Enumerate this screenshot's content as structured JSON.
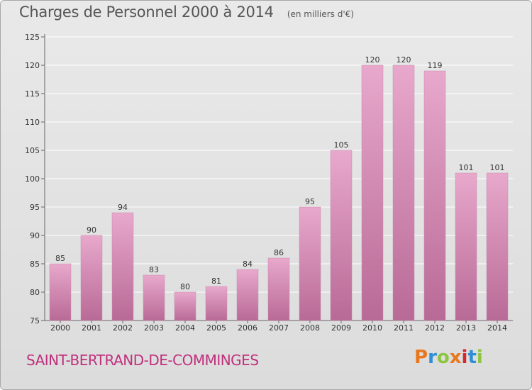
{
  "header": {
    "title": "Charges de Personnel 2000 à 2014",
    "subtitle": "(en milliers d'€)"
  },
  "footer": {
    "commune": "SAINT-BERTRAND-DE-COMMINGES",
    "logo_text": "Proxiti",
    "logo_colors": [
      "#e8771e",
      "#2f8fd6",
      "#8cc63f",
      "#e8771e",
      "#d6262f",
      "#2f8fd6",
      "#8cc63f"
    ]
  },
  "colors": {
    "bar_top": "#e8a8cc",
    "bar_bottom": "#b86a96",
    "grid": "#ffffff",
    "axis": "#666666"
  },
  "chart_data": {
    "type": "bar",
    "title": "Charges de Personnel 2000 à 2014",
    "subtitle": "(en milliers d'€)",
    "xlabel": "",
    "ylabel": "",
    "categories": [
      "2000",
      "2001",
      "2002",
      "2003",
      "2004",
      "2005",
      "2006",
      "2007",
      "2008",
      "2009",
      "2010",
      "2011",
      "2012",
      "2013",
      "2014"
    ],
    "values": [
      85,
      90,
      94,
      83,
      80,
      81,
      84,
      86,
      95,
      105,
      120,
      120,
      119,
      101,
      101
    ],
    "ylim": [
      75,
      125
    ],
    "yticks": [
      75,
      80,
      85,
      90,
      95,
      100,
      105,
      110,
      115,
      120,
      125
    ],
    "grid": true,
    "data_labels": true
  }
}
